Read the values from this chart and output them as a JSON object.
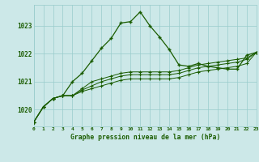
{
  "title": "Graphe pression niveau de la mer (hPa)",
  "bg_color": "#cce8e8",
  "grid_color": "#99cccc",
  "line_color": "#1a5c00",
  "x_ticks": [
    0,
    1,
    2,
    3,
    4,
    5,
    6,
    7,
    8,
    9,
    10,
    11,
    12,
    13,
    14,
    15,
    16,
    17,
    18,
    19,
    20,
    21,
    22,
    23
  ],
  "y_ticks": [
    1020,
    1021,
    1022,
    1023
  ],
  "ylim": [
    1019.4,
    1023.75
  ],
  "xlim": [
    0,
    23
  ],
  "series": [
    [
      1019.55,
      1020.1,
      1020.4,
      1020.5,
      1021.0,
      1021.3,
      1021.75,
      1022.2,
      1022.55,
      1023.1,
      1023.15,
      1023.5,
      1023.0,
      1022.6,
      1022.15,
      1021.6,
      1021.55,
      1021.65,
      1021.55,
      1021.5,
      1021.45,
      1021.45,
      1021.95,
      1022.05
    ],
    [
      1019.55,
      1020.1,
      1020.4,
      1020.5,
      1020.5,
      1020.75,
      1021.0,
      1021.1,
      1021.2,
      1021.3,
      1021.35,
      1021.35,
      1021.35,
      1021.35,
      1021.35,
      1021.4,
      1021.5,
      1021.6,
      1021.65,
      1021.7,
      1021.75,
      1021.8,
      1021.85,
      1022.05
    ],
    [
      1019.55,
      1020.1,
      1020.4,
      1020.5,
      1020.5,
      1020.7,
      1020.85,
      1021.0,
      1021.1,
      1021.2,
      1021.25,
      1021.25,
      1021.25,
      1021.25,
      1021.25,
      1021.3,
      1021.4,
      1021.5,
      1021.55,
      1021.6,
      1021.65,
      1021.7,
      1021.8,
      1022.05
    ],
    [
      1019.55,
      1020.1,
      1020.4,
      1020.5,
      1020.5,
      1020.65,
      1020.75,
      1020.85,
      1020.95,
      1021.05,
      1021.1,
      1021.1,
      1021.1,
      1021.1,
      1021.1,
      1021.15,
      1021.25,
      1021.35,
      1021.4,
      1021.45,
      1021.5,
      1021.55,
      1021.65,
      1022.05
    ]
  ]
}
